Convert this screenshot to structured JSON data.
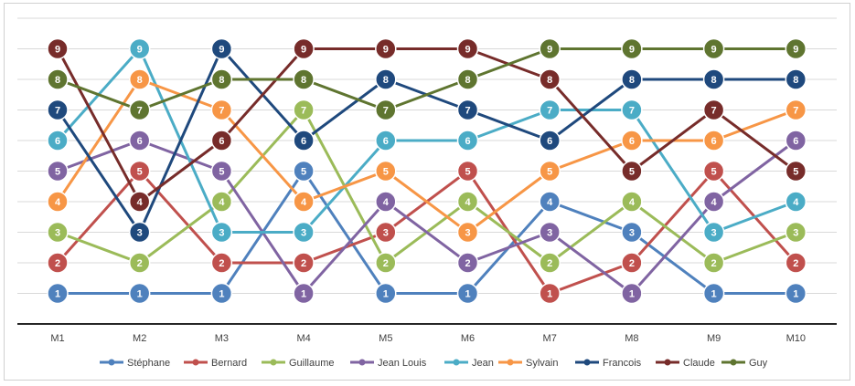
{
  "chart_data": {
    "type": "line",
    "title": "",
    "xlabel": "",
    "ylabel": "",
    "categories": [
      "M1",
      "M2",
      "M3",
      "M4",
      "M5",
      "M6",
      "M7",
      "M8",
      "M9",
      "M10"
    ],
    "ylim": [
      0,
      10
    ],
    "grid": true,
    "legend_position": "bottom",
    "markers_show_values": true,
    "series": [
      {
        "name": "Stéphane",
        "color": "#4f81bd",
        "values": [
          1,
          1,
          1,
          5,
          1,
          1,
          4,
          3,
          1,
          1
        ]
      },
      {
        "name": "Bernard",
        "color": "#c0504d",
        "values": [
          2,
          5,
          2,
          2,
          3,
          5,
          1,
          2,
          5,
          2
        ]
      },
      {
        "name": "Guillaume",
        "color": "#9bbb59",
        "values": [
          3,
          2,
          4,
          7,
          2,
          4,
          2,
          4,
          2,
          3
        ]
      },
      {
        "name": "Jean Louis",
        "color": "#8064a2",
        "values": [
          5,
          6,
          5,
          1,
          4,
          2,
          3,
          1,
          4,
          6
        ]
      },
      {
        "name": "Jean",
        "color": "#4bacc6",
        "values": [
          6,
          9,
          3,
          3,
          6,
          6,
          7,
          7,
          3,
          4
        ]
      },
      {
        "name": "Sylvain",
        "color": "#f79646",
        "values": [
          4,
          8,
          7,
          4,
          5,
          3,
          5,
          6,
          6,
          7
        ]
      },
      {
        "name": "Francois",
        "color": "#1f497d",
        "values": [
          7,
          3,
          9,
          6,
          8,
          7,
          6,
          8,
          8,
          8
        ]
      },
      {
        "name": "Claude",
        "color": "#772c2a",
        "values": [
          9,
          4,
          6,
          9,
          9,
          9,
          8,
          5,
          7,
          5
        ]
      },
      {
        "name": "Guy",
        "color": "#5f7530",
        "values": [
          8,
          7,
          8,
          8,
          7,
          8,
          9,
          9,
          9,
          9
        ]
      }
    ]
  }
}
